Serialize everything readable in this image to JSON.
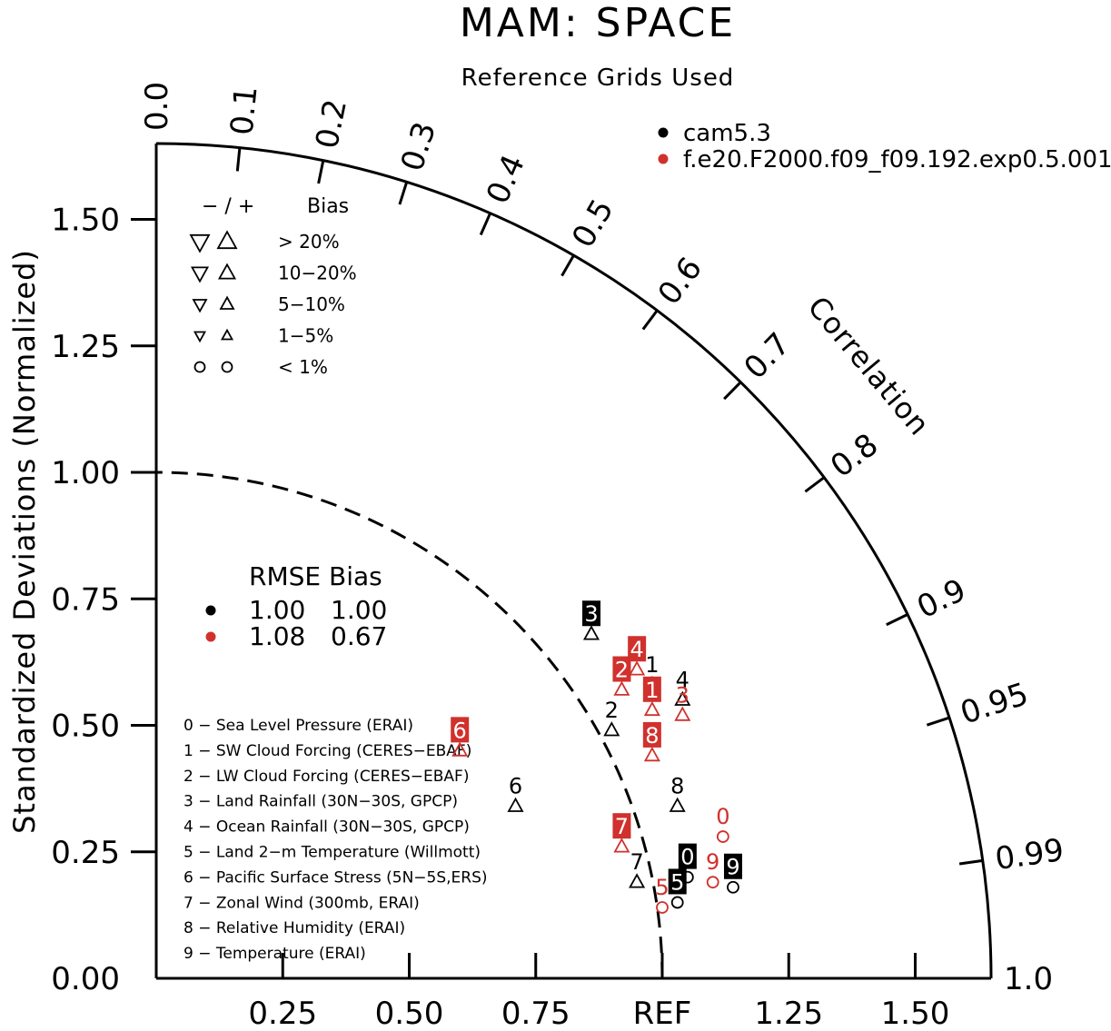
{
  "chart_data": {
    "type": "scatter",
    "subtype": "taylor-diagram",
    "title": "MAM: SPACE",
    "subtitle": "Reference Grids Used",
    "ylabel": "Standardized Deviations (Normalized)",
    "xlabel": "",
    "ref_label": "REF",
    "corr_label": "Correlation",
    "std_range": [
      0,
      1.65
    ],
    "y_ticks": [
      "0.00",
      "0.25",
      "0.50",
      "0.75",
      "1.00",
      "1.25",
      "1.50"
    ],
    "x_ticks": [
      "0.25",
      "0.50",
      "0.75",
      "REF",
      "1.25",
      "1.50"
    ],
    "corr_ticks": [
      "0.0",
      "0.1",
      "0.2",
      "0.3",
      "0.4",
      "0.5",
      "0.6",
      "0.7",
      "0.8",
      "0.9",
      "0.95",
      "0.99",
      "1.0"
    ],
    "series": [
      {
        "name": "cam5.3",
        "color": "#000000",
        "points": [
          {
            "id": "0",
            "x": 1.05,
            "y": 0.2,
            "shape": "circle",
            "label_style": "box"
          },
          {
            "id": "1",
            "x": 0.98,
            "y": 0.58,
            "shape": "triangle-up",
            "label_style": "plain"
          },
          {
            "id": "2",
            "x": 0.9,
            "y": 0.49,
            "shape": "triangle-up",
            "label_style": "plain"
          },
          {
            "id": "3",
            "x": 0.86,
            "y": 0.68,
            "shape": "triangle-up",
            "label_style": "box"
          },
          {
            "id": "4",
            "x": 1.04,
            "y": 0.55,
            "shape": "triangle-up",
            "label_style": "plain"
          },
          {
            "id": "5",
            "x": 1.03,
            "y": 0.15,
            "shape": "circle",
            "label_style": "box"
          },
          {
            "id": "6",
            "x": 0.71,
            "y": 0.34,
            "shape": "triangle-up",
            "label_style": "plain"
          },
          {
            "id": "7",
            "x": 0.95,
            "y": 0.19,
            "shape": "triangle-up",
            "label_style": "plain"
          },
          {
            "id": "8",
            "x": 1.03,
            "y": 0.34,
            "shape": "triangle-up",
            "label_style": "plain"
          },
          {
            "id": "9",
            "x": 1.14,
            "y": 0.18,
            "shape": "circle",
            "label_style": "box"
          }
        ]
      },
      {
        "name": "f.e20.F2000.f09_f09.192.exp0.5.001",
        "color": "#d0312d",
        "points": [
          {
            "id": "0",
            "x": 1.12,
            "y": 0.28,
            "shape": "circle",
            "label_style": "plain"
          },
          {
            "id": "1",
            "x": 0.98,
            "y": 0.53,
            "shape": "triangle-up",
            "label_style": "box"
          },
          {
            "id": "2",
            "x": 0.92,
            "y": 0.57,
            "shape": "triangle-up",
            "label_style": "box"
          },
          {
            "id": "3",
            "x": 1.04,
            "y": 0.52,
            "shape": "triangle-up",
            "label_style": "plain"
          },
          {
            "id": "4",
            "x": 0.95,
            "y": 0.61,
            "shape": "triangle-up",
            "label_style": "box"
          },
          {
            "id": "5",
            "x": 1.0,
            "y": 0.14,
            "shape": "circle",
            "label_style": "plain"
          },
          {
            "id": "6",
            "x": 0.6,
            "y": 0.45,
            "shape": "triangle-up",
            "label_style": "box"
          },
          {
            "id": "7",
            "x": 0.92,
            "y": 0.26,
            "shape": "triangle-up",
            "label_style": "box"
          },
          {
            "id": "8",
            "x": 0.98,
            "y": 0.44,
            "shape": "triangle-up",
            "label_style": "box"
          },
          {
            "id": "9",
            "x": 1.1,
            "y": 0.19,
            "shape": "circle",
            "label_style": "plain"
          }
        ]
      }
    ],
    "bias_legend": {
      "header_signs": "− / +",
      "header_label": "Bias",
      "rows": [
        "> 20%",
        "10−20%",
        "5−10%",
        "1−5%",
        "< 1%"
      ]
    },
    "stats_table": {
      "header": "RMSE Bias",
      "rows": [
        {
          "color": "#000000",
          "rmse": "1.00",
          "bias": "1.00"
        },
        {
          "color": "#d0312d",
          "rmse": "1.08",
          "bias": "0.67"
        }
      ]
    },
    "case_list": [
      "0 − Sea Level Pressure (ERAI)",
      "1 − SW Cloud Forcing (CERES−EBAF)",
      "2 − LW Cloud Forcing (CERES−EBAF)",
      "3 − Land Rainfall (30N−30S, GPCP)",
      "4 − Ocean Rainfall (30N−30S, GPCP)",
      "5 − Land 2−m Temperature (Willmott)",
      "6 − Pacific Surface Stress (5N−5S,ERS)",
      "7 − Zonal Wind (300mb, ERAI)",
      "8 − Relative Humidity (ERAI)",
      "9 − Temperature (ERAI)"
    ]
  }
}
